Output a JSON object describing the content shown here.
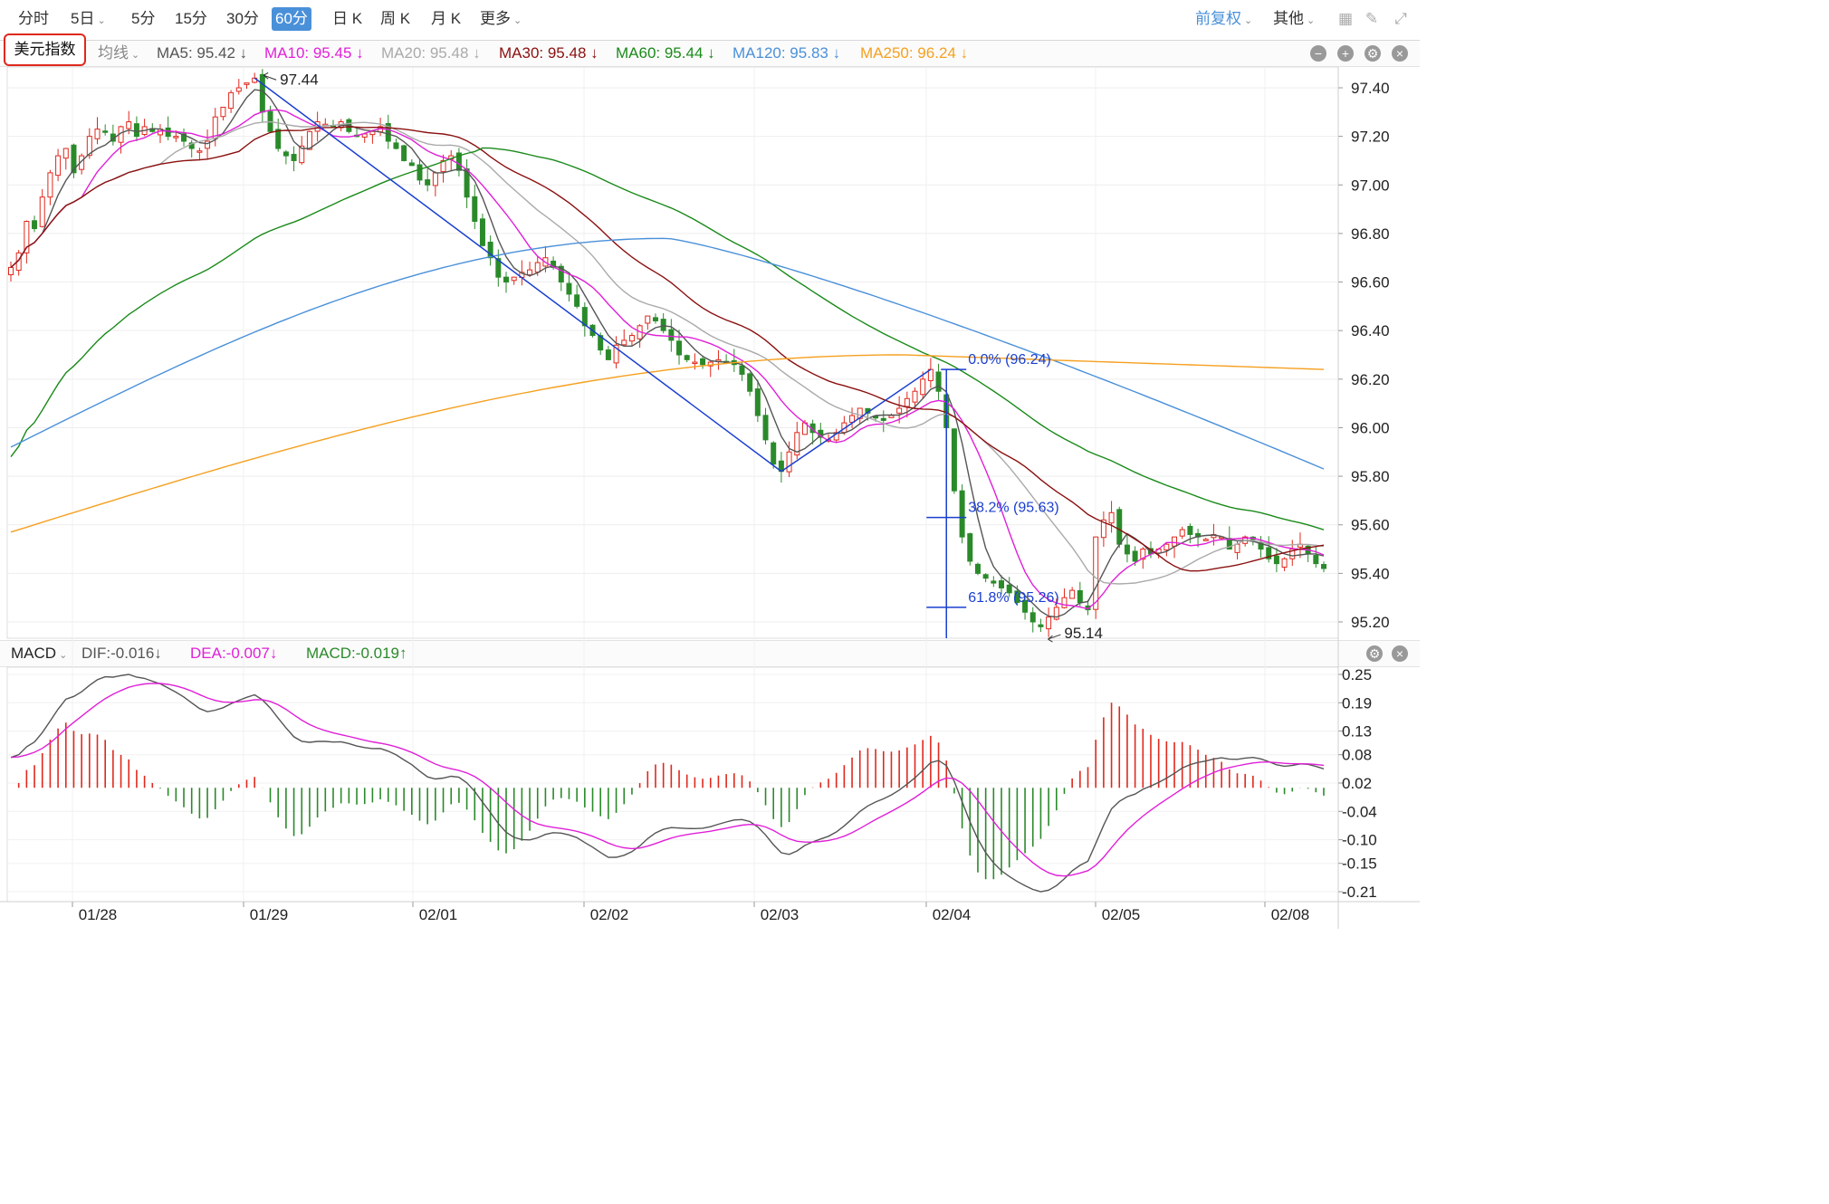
{
  "toolbar": {
    "periods": [
      {
        "label": "分时",
        "active": false,
        "dropdown": false
      },
      {
        "label": "5日",
        "active": false,
        "dropdown": true
      },
      {
        "label": "5分",
        "active": false,
        "dropdown": false
      },
      {
        "label": "15分",
        "active": false,
        "dropdown": false
      },
      {
        "label": "30分",
        "active": false,
        "dropdown": false
      },
      {
        "label": "60分",
        "active": true,
        "dropdown": false
      },
      {
        "label": "日 K",
        "active": false,
        "dropdown": false
      },
      {
        "label": "周 K",
        "active": false,
        "dropdown": false
      },
      {
        "label": "月 K",
        "active": false,
        "dropdown": false
      },
      {
        "label": "更多",
        "active": false,
        "dropdown": true
      }
    ],
    "adjust_label": "前复权",
    "other_label": "其他",
    "accent": "#4a90d9"
  },
  "legend": {
    "symbol": "美元指数",
    "ma_type": "均线",
    "items": [
      {
        "text": "MA5: 95.42 ↓",
        "color": "#555555"
      },
      {
        "text": "MA10: 95.45 ↓",
        "color": "#e020d8"
      },
      {
        "text": "MA20: 95.48 ↓",
        "color": "#aaaaaa"
      },
      {
        "text": "MA30: 95.48 ↓",
        "color": "#8b1010"
      },
      {
        "text": "MA60: 95.44 ↓",
        "color": "#1a8a1a"
      },
      {
        "text": "MA120: 95.83 ↓",
        "color": "#4a90d9"
      },
      {
        "text": "MA250: 96.24 ↓",
        "color": "#f5a020"
      }
    ]
  },
  "macd_legend": {
    "name": "MACD",
    "dif": "DIF:-0.016↓",
    "dea": "DEA:-0.007↓",
    "macd": "MACD:-0.019↑"
  },
  "chart_data": [
    {
      "type": "candlestick",
      "title": "美元指数 60分",
      "ylim": [
        95.14,
        97.44
      ],
      "y_ticks": [
        "97.40",
        "97.20",
        "97.00",
        "96.80",
        "96.60",
        "96.40",
        "96.20",
        "96.00",
        "95.80",
        "95.60",
        "95.40",
        "95.20"
      ],
      "x_ticks": [
        "01/28",
        "01/29",
        "02/01",
        "02/02",
        "02/03",
        "02/04",
        "02/05",
        "02/08"
      ],
      "close_approx": [
        96.66,
        96.72,
        96.85,
        96.82,
        96.95,
        97.05,
        97.12,
        97.15,
        97.05,
        97.12,
        97.2,
        97.23,
        97.22,
        97.18,
        97.24,
        97.26,
        97.2,
        97.24,
        97.22,
        97.23,
        97.2,
        97.2,
        97.18,
        97.15,
        97.14,
        97.18,
        97.28,
        97.32,
        97.38,
        97.4,
        97.42,
        97.44,
        97.3,
        97.22,
        97.15,
        97.12,
        97.1,
        97.16,
        97.22,
        97.26,
        97.25,
        97.24,
        97.26,
        97.22,
        97.2,
        97.21,
        97.22,
        97.24,
        97.18,
        97.15,
        97.1,
        97.08,
        97.02,
        97.0,
        97.05,
        97.1,
        97.12,
        97.06,
        96.95,
        96.85,
        96.75,
        96.7,
        96.62,
        96.6,
        96.62,
        96.64,
        96.65,
        96.68,
        96.7,
        96.66,
        96.6,
        96.55,
        96.5,
        96.42,
        96.38,
        96.32,
        96.28,
        96.34,
        96.36,
        96.38,
        96.42,
        96.46,
        96.44,
        96.4,
        96.36,
        96.3,
        96.28,
        96.27,
        96.26,
        96.27,
        96.28,
        96.27,
        96.26,
        96.22,
        96.15,
        96.05,
        95.95,
        95.85,
        95.82,
        95.9,
        95.98,
        96.02,
        95.98,
        95.96,
        95.95,
        95.98,
        96.02,
        96.05,
        96.08,
        96.06,
        96.04,
        96.03,
        96.05,
        96.08,
        96.12,
        96.15,
        96.2,
        96.24,
        96.15,
        96.0,
        95.74,
        95.55,
        95.45,
        95.4,
        95.38,
        95.36,
        95.34,
        95.32,
        95.28,
        95.24,
        95.2,
        95.18,
        95.22,
        95.26,
        95.3,
        95.33,
        95.28,
        95.25,
        95.55,
        95.62,
        95.65,
        95.52,
        95.48,
        95.45,
        95.5,
        95.48,
        95.5,
        95.52,
        95.55,
        95.58,
        95.56,
        95.55,
        95.54,
        95.56,
        95.55,
        95.5,
        95.52,
        95.55,
        95.54,
        95.5,
        95.46,
        95.44,
        95.46,
        95.5,
        95.52,
        95.48,
        95.44,
        95.42
      ],
      "series": [
        {
          "name": "MA5",
          "color": "#555555",
          "last": 95.42
        },
        {
          "name": "MA10",
          "color": "#e020d8",
          "last": 95.45
        },
        {
          "name": "MA20",
          "color": "#aaaaaa",
          "last": 95.48
        },
        {
          "name": "MA30",
          "color": "#8b1010",
          "last": 95.48
        },
        {
          "name": "MA60",
          "color": "#1a8a1a",
          "last": 95.44
        },
        {
          "name": "MA120",
          "color": "#4a90d9",
          "last": 95.83
        },
        {
          "name": "MA250",
          "color": "#f5a020",
          "last": 96.24
        }
      ],
      "annotations": [
        {
          "text": "97.44",
          "value": 97.44
        },
        {
          "text": "95.14",
          "value": 95.14
        },
        {
          "text": "0.0% (96.24)",
          "value": 96.24
        },
        {
          "text": "38.2% (95.63)",
          "value": 95.63
        },
        {
          "text": "61.8% (95.26)",
          "value": 95.26
        }
      ],
      "colors": {
        "up": "#e0281c",
        "down": "#2a8a2a",
        "fib": "#1a3fd0"
      }
    },
    {
      "type": "macd",
      "ylim": [
        -0.21,
        0.25
      ],
      "y_ticks": [
        "0.25",
        "0.19",
        "0.13",
        "0.08",
        "0.02",
        "-0.04",
        "-0.10",
        "-0.15",
        "-0.21"
      ],
      "series": [
        {
          "name": "DIF",
          "color": "#555555",
          "last": -0.016
        },
        {
          "name": "DEA",
          "color": "#e020d8",
          "last": -0.007
        },
        {
          "name": "MACD",
          "color": "#2a8a2a",
          "last": -0.019
        }
      ]
    }
  ]
}
